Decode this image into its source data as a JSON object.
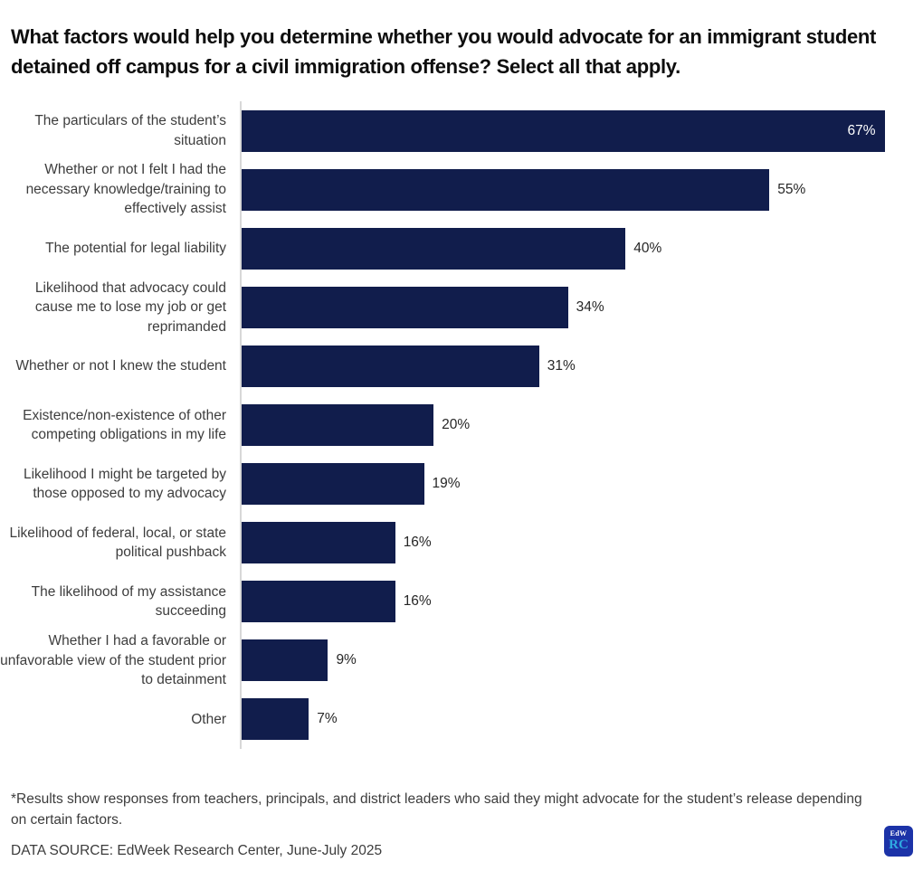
{
  "title": "What factors would help you determine whether you would advocate for an immigrant student detained off campus for a civil immigration offense? Select all that apply.",
  "chart_data": {
    "type": "bar",
    "orientation": "horizontal",
    "title": "What factors would help you determine whether you would advocate for an immigrant student detained off campus for a civil immigration offense? Select all that apply.",
    "categories": [
      "The particulars of the student’s situation",
      "Whether or not I felt I had the necessary knowledge/training to effectively assist",
      "The potential for legal liability",
      "Likelihood that advocacy could cause me to lose my job or get reprimanded",
      "Whether or not I knew the student",
      "Existence/non-existence of other competing obligations in my life",
      "Likelihood I might be targeted by those opposed to my advocacy",
      "Likelihood of federal, local, or state political pushback",
      "The likelihood of my assistance succeeding",
      "Whether I had a favorable or unfavorable view of the student prior to detainment",
      "Other"
    ],
    "values": [
      67,
      55,
      40,
      34,
      31,
      20,
      19,
      16,
      16,
      9,
      7
    ],
    "value_labels": [
      "67%",
      "55%",
      "40%",
      "34%",
      "31%",
      "20%",
      "19%",
      "16%",
      "16%",
      "9%",
      "7%"
    ],
    "value_label_positions": [
      "inside",
      "outside",
      "outside",
      "outside",
      "outside",
      "outside",
      "outside",
      "outside",
      "outside",
      "outside",
      "outside"
    ],
    "xlabel": "",
    "ylabel": "",
    "xlim": [
      0,
      71
    ],
    "grid": false,
    "legend": false,
    "bar_color": "#111d4c",
    "inside_label_color": "#ffffff",
    "outside_label_color": "#262626"
  },
  "footnote": "*Results show responses from teachers, principals, and district leaders who said they might advocate for the student’s release depending on certain factors.",
  "data_source": "DATA SOURCE: EdWeek Research Center, June-July 2025",
  "logo": {
    "top": "EdW",
    "bottom": "RC",
    "bg_color": "#1c33a8",
    "top_color": "#ffffff",
    "bottom_color": "#2fa9e0"
  }
}
